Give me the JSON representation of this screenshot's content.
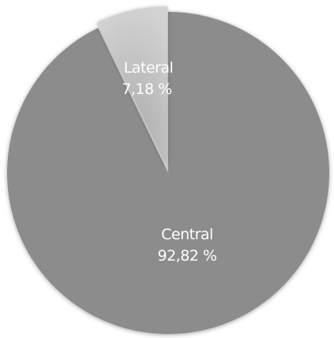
{
  "chart_data": {
    "type": "pie",
    "slices": [
      {
        "label": "Central",
        "value_text": "92,82 %",
        "value": 92.82,
        "color": "#8c8c8c"
      },
      {
        "label": "Lateral",
        "value_text": "7,18 %",
        "value": 7.18,
        "color": "#c4c4c4"
      }
    ],
    "exploded_slice": "Lateral",
    "legend": "none"
  }
}
